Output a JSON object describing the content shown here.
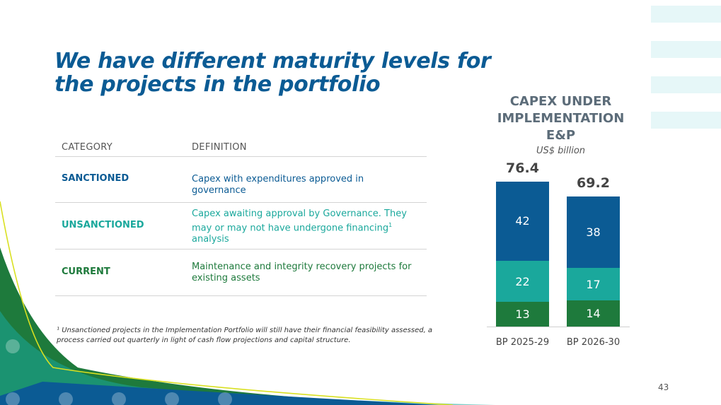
{
  "slide": {
    "title": "We have different maturity levels for the projects in the portfolio",
    "page_number": "43"
  },
  "table": {
    "headers": {
      "category": "CATEGORY",
      "definition": "DEFINITION"
    },
    "rows": [
      {
        "category": "SANCTIONED",
        "definition": "Capex with expenditures approved in governance",
        "color": "#0b5b94"
      },
      {
        "category": "UNSANCTIONED",
        "definition": "Capex awaiting approval by Governance. They may or may not have undergone financing",
        "sup": "1",
        "definition_tail": "analysis",
        "color": "#1aa89c"
      },
      {
        "category": "CURRENT",
        "definition": "Maintenance and integrity recovery projects for existing assets",
        "color": "#1e7a3c"
      }
    ]
  },
  "footnote": "¹ Unsanctioned projects in the Implementation Portfolio will still have their financial feasibility assessed, a process carried out quarterly in light of cash flow projections and capital structure.",
  "chart_data": {
    "type": "bar",
    "stacked": true,
    "title": "CAPEX UNDER IMPLEMENTATION E&P",
    "title_lines": [
      "CAPEX UNDER",
      "IMPLEMENTATION",
      "E&P"
    ],
    "subtitle": "US$ billion",
    "categories": [
      "BP 2025-29",
      "BP 2026-30"
    ],
    "totals": [
      76.4,
      69.2
    ],
    "total_labels": [
      "76.4",
      "69.2"
    ],
    "series": [
      {
        "name": "Current",
        "values": [
          13,
          14
        ],
        "color": "#1e7a3c"
      },
      {
        "name": "Unsanctioned",
        "values": [
          22,
          17
        ],
        "color": "#1aa89c"
      },
      {
        "name": "Sanctioned",
        "values": [
          42,
          38
        ],
        "color": "#0b5b94"
      }
    ],
    "ylim": [
      0,
      77
    ]
  },
  "colors": {
    "title": "#0b5b94",
    "green": "#1e7a3c",
    "teal": "#1aa89c",
    "blue": "#0b5b94",
    "yellow_line": "#d9e021"
  }
}
